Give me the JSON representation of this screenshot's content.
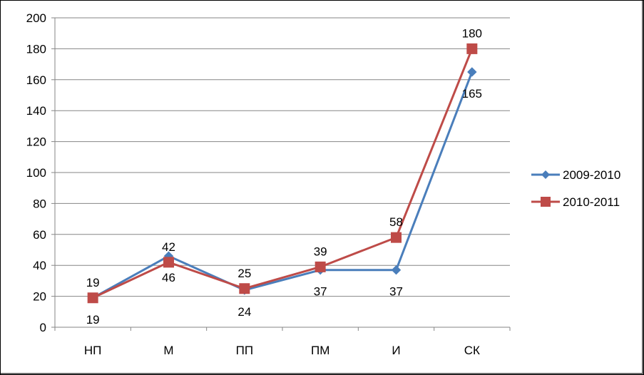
{
  "chart_data": {
    "type": "line",
    "title": "",
    "xlabel": "",
    "ylabel": "",
    "categories": [
      "НП",
      "М",
      "ПП",
      "ПМ",
      "И",
      "СК"
    ],
    "ylim": [
      0,
      200
    ],
    "ytick_step": 20,
    "grid": true,
    "legend_position": "right",
    "series": [
      {
        "name": "2009-2010",
        "values": [
          19,
          46,
          24,
          37,
          37,
          165
        ],
        "color": "#4a7ebb",
        "marker": "diamond",
        "label_position": [
          "above",
          "below",
          "below",
          "below",
          "below",
          "below"
        ]
      },
      {
        "name": "2010-2011",
        "values": [
          19,
          42,
          25,
          39,
          58,
          180
        ],
        "color": "#be4b48",
        "marker": "square",
        "label_position": [
          "below",
          "above",
          "above",
          "above",
          "above",
          "above"
        ]
      }
    ],
    "data_labels": [
      {
        "series": 0,
        "index": 0,
        "text": "19"
      },
      {
        "series": 1,
        "index": 0,
        "text": "19"
      },
      {
        "series": 1,
        "index": 1,
        "text": "42"
      },
      {
        "series": 0,
        "index": 1,
        "text": "46"
      },
      {
        "series": 1,
        "index": 2,
        "text": "25"
      },
      {
        "series": 0,
        "index": 2,
        "text": "24"
      },
      {
        "series": 1,
        "index": 3,
        "text": "39"
      },
      {
        "series": 0,
        "index": 3,
        "text": "37"
      },
      {
        "series": 1,
        "index": 4,
        "text": "58"
      },
      {
        "series": 0,
        "index": 4,
        "text": "37"
      },
      {
        "series": 1,
        "index": 5,
        "text": "180"
      },
      {
        "series": 0,
        "index": 5,
        "text": "165"
      }
    ]
  }
}
